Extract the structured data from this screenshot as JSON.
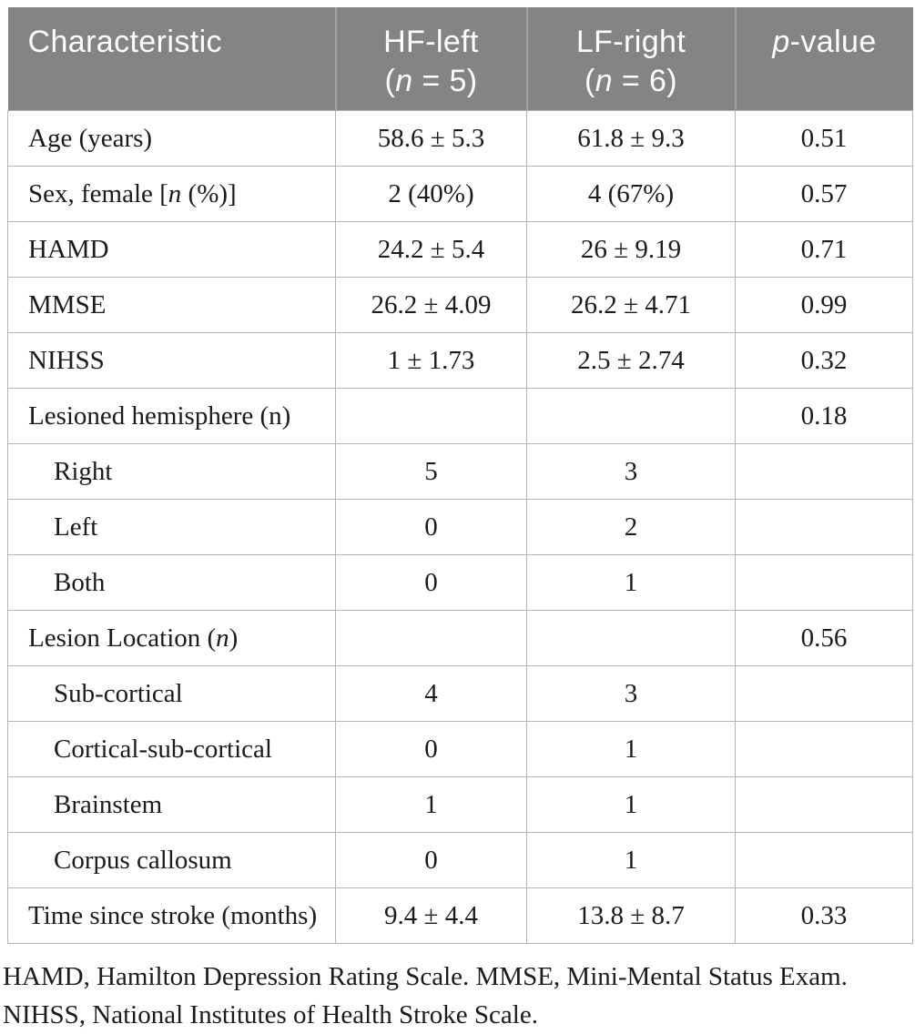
{
  "colors": {
    "header_background": "#848487",
    "header_text": "#fdfdfd",
    "header_divider": "#a2a2a2",
    "cell_border": "#b5b5b5",
    "body_text": "#1b1b1b",
    "page_background": "#ffffff"
  },
  "table": {
    "columns": [
      {
        "id": "characteristic",
        "align": "left",
        "lines": [
          [
            {
              "text": "Characteristic",
              "italic": false
            }
          ]
        ]
      },
      {
        "id": "hf-left",
        "align": "center",
        "lines": [
          [
            {
              "text": "HF-left",
              "italic": false
            }
          ],
          [
            {
              "text": "(",
              "italic": false
            },
            {
              "text": "n",
              "italic": true
            },
            {
              "text": " = 5)",
              "italic": false
            }
          ]
        ]
      },
      {
        "id": "lf-right",
        "align": "center",
        "lines": [
          [
            {
              "text": "LF-right",
              "italic": false
            }
          ],
          [
            {
              "text": "(",
              "italic": false
            },
            {
              "text": "n",
              "italic": true
            },
            {
              "text": " = 6)",
              "italic": false
            }
          ]
        ]
      },
      {
        "id": "p-value",
        "align": "center",
        "lines": [
          [
            {
              "text": "p",
              "italic": true
            },
            {
              "text": "-value",
              "italic": false
            }
          ]
        ]
      }
    ],
    "rows": [
      {
        "label": [
          {
            "text": "Age (years)",
            "italic": false
          }
        ],
        "indent": false,
        "values": [
          "58.6 ± 5.3",
          "61.8 ± 9.3",
          "0.51"
        ]
      },
      {
        "label": [
          {
            "text": "Sex, female [",
            "italic": false
          },
          {
            "text": "n",
            "italic": true
          },
          {
            "text": " (%)]",
            "italic": false
          }
        ],
        "indent": false,
        "values": [
          "2 (40%)",
          "4 (67%)",
          "0.57"
        ]
      },
      {
        "label": [
          {
            "text": "HAMD",
            "italic": false
          }
        ],
        "indent": false,
        "values": [
          "24.2 ± 5.4",
          "26 ± 9.19",
          "0.71"
        ]
      },
      {
        "label": [
          {
            "text": "MMSE",
            "italic": false
          }
        ],
        "indent": false,
        "values": [
          "26.2 ± 4.09",
          "26.2 ± 4.71",
          "0.99"
        ]
      },
      {
        "label": [
          {
            "text": "NIHSS",
            "italic": false
          }
        ],
        "indent": false,
        "values": [
          "1 ± 1.73",
          "2.5 ± 2.74",
          "0.32"
        ]
      },
      {
        "label": [
          {
            "text": "Lesioned hemisphere (n)",
            "italic": false
          }
        ],
        "indent": false,
        "values": [
          "",
          "",
          "0.18"
        ]
      },
      {
        "label": [
          {
            "text": "Right",
            "italic": false
          }
        ],
        "indent": true,
        "values": [
          "5",
          "3",
          ""
        ]
      },
      {
        "label": [
          {
            "text": "Left",
            "italic": false
          }
        ],
        "indent": true,
        "values": [
          "0",
          "2",
          ""
        ]
      },
      {
        "label": [
          {
            "text": "Both",
            "italic": false
          }
        ],
        "indent": true,
        "values": [
          "0",
          "1",
          ""
        ]
      },
      {
        "label": [
          {
            "text": "Lesion Location (",
            "italic": false
          },
          {
            "text": "n",
            "italic": true
          },
          {
            "text": ")",
            "italic": false
          }
        ],
        "indent": false,
        "values": [
          "",
          "",
          "0.56"
        ]
      },
      {
        "label": [
          {
            "text": "Sub-cortical",
            "italic": false
          }
        ],
        "indent": true,
        "values": [
          "4",
          "3",
          ""
        ]
      },
      {
        "label": [
          {
            "text": "Cortical-sub-cortical",
            "italic": false
          }
        ],
        "indent": true,
        "values": [
          "0",
          "1",
          ""
        ]
      },
      {
        "label": [
          {
            "text": "Brainstem",
            "italic": false
          }
        ],
        "indent": true,
        "values": [
          "1",
          "1",
          ""
        ]
      },
      {
        "label": [
          {
            "text": "Corpus callosum",
            "italic": false
          }
        ],
        "indent": true,
        "values": [
          "0",
          "1",
          ""
        ]
      },
      {
        "label": [
          {
            "text": "Time since stroke (months)",
            "italic": false
          }
        ],
        "indent": false,
        "values": [
          "9.4 ± 4.4",
          "13.8 ± 8.7",
          "0.33"
        ]
      }
    ]
  },
  "footnote": {
    "text": "HAMD, Hamilton Depression Rating Scale. MMSE, Mini-Mental Status Exam. NIHSS, National Institutes of Health Stroke Scale."
  }
}
